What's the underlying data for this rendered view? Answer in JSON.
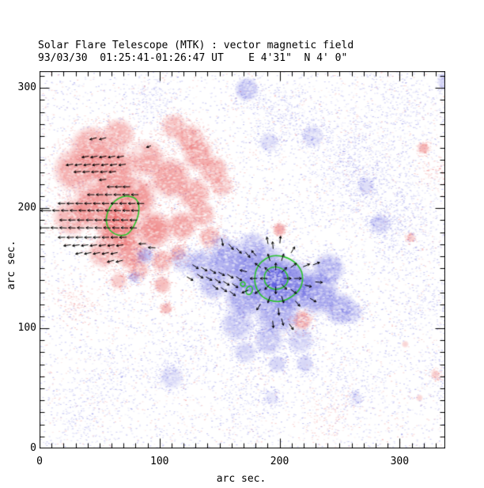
{
  "chart_data": {
    "type": "heatmap",
    "title": "Solar Flare Telescope (MTK) : vector magnetic field",
    "subtitle": "93/03/30  01:25:41-01:26:47 UT    E 4'31\"  N 4' 0\"",
    "xlabel": "arc sec.",
    "ylabel": "arc sec.",
    "x_range": [
      0,
      338
    ],
    "y_range": [
      0,
      314
    ],
    "x_ticks": [
      0,
      100,
      200,
      300
    ],
    "y_ticks": [
      0,
      100,
      200,
      300
    ],
    "minor_tick_step": 10,
    "major_tick_step": 100,
    "colors": {
      "positive": "#e85050",
      "negative": "#5555dd",
      "contour": "#2dc42d",
      "vector": "#000000",
      "axis": "#000000",
      "background": "#ffffff"
    },
    "polarity_blobs": {
      "positive": [
        [
          42.9,
          251.3,
          18.5,
          0.5
        ],
        [
          65.9,
          261.2,
          14.5,
          0.45
        ],
        [
          29.7,
          231.6,
          19.8,
          0.5
        ],
        [
          59.3,
          231.6,
          23.1,
          0.6
        ],
        [
          89.0,
          241.4,
          16.5,
          0.5
        ],
        [
          108.8,
          225.0,
          18.5,
          0.55
        ],
        [
          112.1,
          267.8,
          11.9,
          0.4
        ],
        [
          125.3,
          257.9,
          13.2,
          0.45
        ],
        [
          131.9,
          244.7,
          14.5,
          0.5
        ],
        [
          145.1,
          231.6,
          13.2,
          0.45
        ],
        [
          151.6,
          218.4,
          9.9,
          0.4
        ],
        [
          128.6,
          211.8,
          14.5,
          0.5
        ],
        [
          79.1,
          208.5,
          19.8,
          0.65
        ],
        [
          46.2,
          202.0,
          21.1,
          0.6
        ],
        [
          26.4,
          192.1,
          16.5,
          0.45
        ],
        [
          68.0,
          195.0,
          11.0,
          0.5
        ],
        [
          65.9,
          182.2,
          19.8,
          0.7
        ],
        [
          95.6,
          182.2,
          16.5,
          0.65
        ],
        [
          118.7,
          185.5,
          13.2,
          0.55
        ],
        [
          135.2,
          195.4,
          11.9,
          0.45
        ],
        [
          141.8,
          175.7,
          9.9,
          0.45
        ],
        [
          75.8,
          162.5,
          14.5,
          0.55
        ],
        [
          52.7,
          162.5,
          13.2,
          0.45
        ],
        [
          102.2,
          155.9,
          9.9,
          0.5
        ],
        [
          115.4,
          162.5,
          7.9,
          0.4
        ],
        [
          82.4,
          149.3,
          9.9,
          0.45
        ],
        [
          65.9,
          139.5,
          7.9,
          0.3
        ],
        [
          102.2,
          136.2,
          7.9,
          0.4
        ],
        [
          105.5,
          116.4,
          5.3,
          0.4
        ],
        [
          199.8,
          182.2,
          5.9,
          0.5
        ],
        [
          218.9,
          106.6,
          8.6,
          0.55
        ],
        [
          319.8,
          250.0,
          5.3,
          0.45
        ],
        [
          309.2,
          175.7,
          4.0,
          0.3
        ],
        [
          329.7,
          61.8,
          4.0,
          0.3
        ],
        [
          316.5,
          42.1,
          3.3,
          0.25
        ],
        [
          304.6,
          86.8,
          3.3,
          0.25
        ]
      ],
      "negative": [
        [
          196.8,
          141.5,
          11.0,
          0.8
        ],
        [
          184.6,
          146.1,
          26.4,
          0.6
        ],
        [
          207.7,
          136.2,
          23.1,
          0.7
        ],
        [
          158.2,
          155.9,
          18.5,
          0.5
        ],
        [
          135.2,
          152.6,
          14.5,
          0.4
        ],
        [
          118.7,
          155.9,
          9.9,
          0.3
        ],
        [
          230.8,
          129.6,
          19.8,
          0.55
        ],
        [
          250.5,
          116.4,
          14.5,
          0.45
        ],
        [
          171.4,
          126.3,
          18.5,
          0.5
        ],
        [
          197.8,
          113.2,
          19.8,
          0.5
        ],
        [
          164.8,
          103.3,
          14.5,
          0.35
        ],
        [
          191.2,
          90.1,
          13.2,
          0.35
        ],
        [
          217.6,
          90.1,
          11.9,
          0.3
        ],
        [
          145.1,
          136.2,
          13.2,
          0.4
        ],
        [
          240.7,
          149.3,
          14.5,
          0.45
        ],
        [
          260.4,
          113.2,
          9.9,
          0.3
        ],
        [
          171.4,
          80.3,
          9.9,
          0.3
        ],
        [
          197.8,
          70.4,
          7.9,
          0.25
        ],
        [
          220.9,
          70.4,
          7.9,
          0.25
        ],
        [
          151.6,
          169.1,
          9.9,
          0.3
        ],
        [
          178.0,
          169.1,
          11.9,
          0.35
        ],
        [
          87.7,
          160.5,
          7.9,
          0.4
        ],
        [
          79.1,
          142.8,
          5.3,
          0.3
        ],
        [
          172.7,
          298.7,
          10.6,
          0.4
        ],
        [
          191.2,
          254.6,
          8.6,
          0.25
        ],
        [
          227.5,
          259.9,
          9.9,
          0.25
        ],
        [
          271.6,
          218.4,
          7.9,
          0.2
        ],
        [
          283.5,
          186.8,
          9.2,
          0.35
        ],
        [
          110.1,
          59.2,
          10.6,
          0.25
        ],
        [
          193.2,
          42.1,
          6.6,
          0.15
        ],
        [
          263.7,
          42.1,
          5.3,
          0.15
        ],
        [
          339.5,
          305.3,
          8.6,
          0.35
        ],
        [
          351.4,
          280.9,
          5.3,
          0.25
        ]
      ]
    },
    "white_holes": [
      [
        82.4,
        248.0,
        7,
        0.75
      ],
      [
        80.4,
        218.4,
        5,
        0.6
      ],
      [
        88,
        224,
        4,
        0.5
      ],
      [
        46,
        222,
        5,
        0.5
      ],
      [
        108,
        196,
        4,
        0.5
      ],
      [
        30,
        208,
        4,
        0.45
      ],
      [
        52,
        246,
        4,
        0.4
      ],
      [
        120,
        243,
        5,
        0.5
      ],
      [
        98,
        212,
        4,
        0.45
      ],
      [
        140,
        205,
        4,
        0.4
      ],
      [
        60,
        172,
        4,
        0.4
      ],
      [
        90,
        154,
        4,
        0.4
      ],
      [
        190,
        160,
        4,
        0.4
      ],
      [
        215,
        125,
        4,
        0.4
      ],
      [
        175,
        108,
        5,
        0.45
      ],
      [
        222,
        147,
        5,
        0.5
      ],
      [
        240,
        135,
        4,
        0.4
      ],
      [
        158,
        143,
        4,
        0.4
      ],
      [
        203,
        95,
        4,
        0.4
      ],
      [
        235,
        110,
        4,
        0.35
      ]
    ],
    "green_contours": {
      "bean": [
        [
          72.5,
          210.5
        ],
        [
          80.4,
          208.6
        ],
        [
          83.1,
          202.0
        ],
        [
          82.4,
          194.1
        ],
        [
          79.8,
          187.5
        ],
        [
          77.1,
          182.2
        ],
        [
          72.5,
          177.6
        ],
        [
          65.9,
          177.0
        ],
        [
          59.3,
          180.3
        ],
        [
          56.0,
          185.5
        ],
        [
          55.4,
          192.1
        ],
        [
          57.4,
          198.7
        ],
        [
          60.7,
          203.9
        ],
        [
          65.9,
          208.6
        ]
      ],
      "outer": [
        [
          197.1,
          161.2
        ],
        [
          209.7,
          157.9
        ],
        [
          218.3,
          149.3
        ],
        [
          219.6,
          139.5
        ],
        [
          216.3,
          130.9
        ],
        [
          206.4,
          123.7
        ],
        [
          197.1,
          121.7
        ],
        [
          186.6,
          125.0
        ],
        [
          180.7,
          132.2
        ],
        [
          178.7,
          141.4
        ],
        [
          181.3,
          152.0
        ],
        [
          188.6,
          158.6
        ]
      ],
      "inner": [
        [
          195.2,
          152.0
        ],
        [
          204.4,
          148.7
        ],
        [
          207.7,
          141.4
        ],
        [
          205.1,
          134.9
        ],
        [
          197.1,
          131.6
        ],
        [
          189.2,
          134.9
        ],
        [
          186.6,
          141.4
        ],
        [
          188.6,
          148.0
        ]
      ],
      "small": [
        {
          "x": 169.4,
          "y": 136.8,
          "rx": 1.9,
          "ry": 1.9
        },
        {
          "x": 174.7,
          "y": 131.6,
          "rx": 2.6,
          "ry": 3.6
        }
      ]
    },
    "vectors": {
      "default_len": 6,
      "red_region_rows": [
        {
          "y": 257.9,
          "x0": 44.8,
          "n": 2,
          "step": 7.9,
          "angle": 195
        },
        {
          "y": 242.8,
          "x0": 38.2,
          "n": 5,
          "step": 7.3,
          "angle": 190
        },
        {
          "y": 236.2,
          "x0": 25.1,
          "n": 7,
          "step": 7.3,
          "angle": 188
        },
        {
          "y": 230.3,
          "x0": 31.6,
          "n": 5,
          "step": 7.3,
          "angle": 185
        },
        {
          "y": 223.7,
          "x0": 52.7,
          "n": 1,
          "step": 7.3,
          "angle": 185
        },
        {
          "y": 217.8,
          "x0": 59.3,
          "n": 3,
          "step": 6.6,
          "angle": 182
        },
        {
          "y": 211.2,
          "x0": 42.9,
          "n": 6,
          "step": 7.3,
          "angle": 180
        },
        {
          "y": 203.9,
          "x0": 18.5,
          "n": 10,
          "step": 7.3,
          "angle": 180
        },
        {
          "y": 198.0,
          "x0": 13.8,
          "n": 10,
          "step": 7.3,
          "angle": 178
        },
        {
          "y": 190.1,
          "x0": 19.8,
          "n": 9,
          "step": 7.3,
          "angle": 180
        },
        {
          "y": 183.6,
          "x0": 12.5,
          "n": 10,
          "step": 7.3,
          "angle": 178
        },
        {
          "y": 175.7,
          "x0": 18.5,
          "n": 8,
          "step": 7.3,
          "angle": 182
        },
        {
          "y": 169.1,
          "x0": 23.1,
          "n": 7,
          "step": 7.3,
          "angle": 188
        },
        {
          "y": 162.5,
          "x0": 33.0,
          "n": 5,
          "step": 7.3,
          "angle": 192
        },
        {
          "y": 155.9,
          "x0": 59.3,
          "n": 2,
          "step": 7.3,
          "angle": 195
        }
      ],
      "blue_radial_center": [
        196.8,
        141.5
      ],
      "blue_radial_rings": [
        {
          "r": 9.9,
          "n": 8,
          "start": 90
        },
        {
          "r": 18.4,
          "n": 10,
          "start": 72
        },
        {
          "r": 27.7,
          "n": 10,
          "start": 95
        }
      ],
      "extra": [
        [
          5.3,
          198.0,
          180,
          9
        ],
        [
          4.0,
          183.6,
          180,
          9
        ],
        [
          91.0,
          251.3,
          200,
          4
        ],
        [
          125.3,
          141.4,
          -30
        ],
        [
          129.9,
          151.3,
          -35
        ],
        [
          137.1,
          149.3,
          -32
        ],
        [
          144.4,
          147.4,
          -35
        ],
        [
          151.6,
          145.4,
          -30
        ],
        [
          158.9,
          143.4,
          -33
        ],
        [
          166.1,
          141.4,
          -35
        ],
        [
          133.8,
          143.4,
          -34
        ],
        [
          141.1,
          141.4,
          -30
        ],
        [
          148.4,
          139.5,
          -35
        ],
        [
          155.6,
          137.5,
          -32
        ],
        [
          162.9,
          135.5,
          -35
        ],
        [
          146.4,
          134.2,
          -38
        ],
        [
          153.6,
          132.2,
          -35
        ],
        [
          160.9,
          128.9,
          -38
        ],
        [
          152.3,
          171.7,
          -80
        ],
        [
          159.6,
          167.8,
          -50
        ],
        [
          166.1,
          164.5,
          -45
        ],
        [
          173.4,
          161.2,
          -50
        ],
        [
          85.7,
          170.4,
          182
        ],
        [
          93.6,
          167.1,
          178
        ],
        [
          194.5,
          103.3,
          -85
        ],
        [
          202.4,
          105.3,
          -75
        ],
        [
          209.7,
          101.3,
          -55
        ],
        [
          227.9,
          123.5,
          -30
        ],
        [
          232.7,
          138.4,
          -5
        ],
        [
          230.6,
          153.8,
          20
        ],
        [
          189.9,
          173.0,
          100
        ],
        [
          200.5,
          173.7,
          85
        ]
      ]
    },
    "noise": {
      "seed": 42,
      "uniform_negative": 5200,
      "uniform_positive": 2300,
      "haze": [
        [
          265,
          235,
          55,
          1100,
          "n"
        ],
        [
          300,
          185,
          45,
          550,
          "n"
        ],
        [
          200,
          278,
          30,
          350,
          "n"
        ],
        [
          95,
          290,
          25,
          220,
          "n"
        ],
        [
          60,
          60,
          40,
          240,
          "n"
        ],
        [
          170,
          45,
          45,
          280,
          "n"
        ],
        [
          260,
          55,
          45,
          280,
          "n"
        ],
        [
          320,
          120,
          30,
          200,
          "n"
        ],
        [
          30,
          120,
          25,
          180,
          "p"
        ],
        [
          330,
          230,
          20,
          140,
          "p"
        ],
        [
          240,
          30,
          30,
          140,
          "p"
        ],
        [
          120,
          80,
          30,
          200,
          "n"
        ],
        [
          300,
          290,
          35,
          280,
          "n"
        ],
        [
          35,
          25,
          30,
          150,
          "n"
        ],
        [
          335,
          60,
          25,
          150,
          "n"
        ]
      ]
    }
  }
}
